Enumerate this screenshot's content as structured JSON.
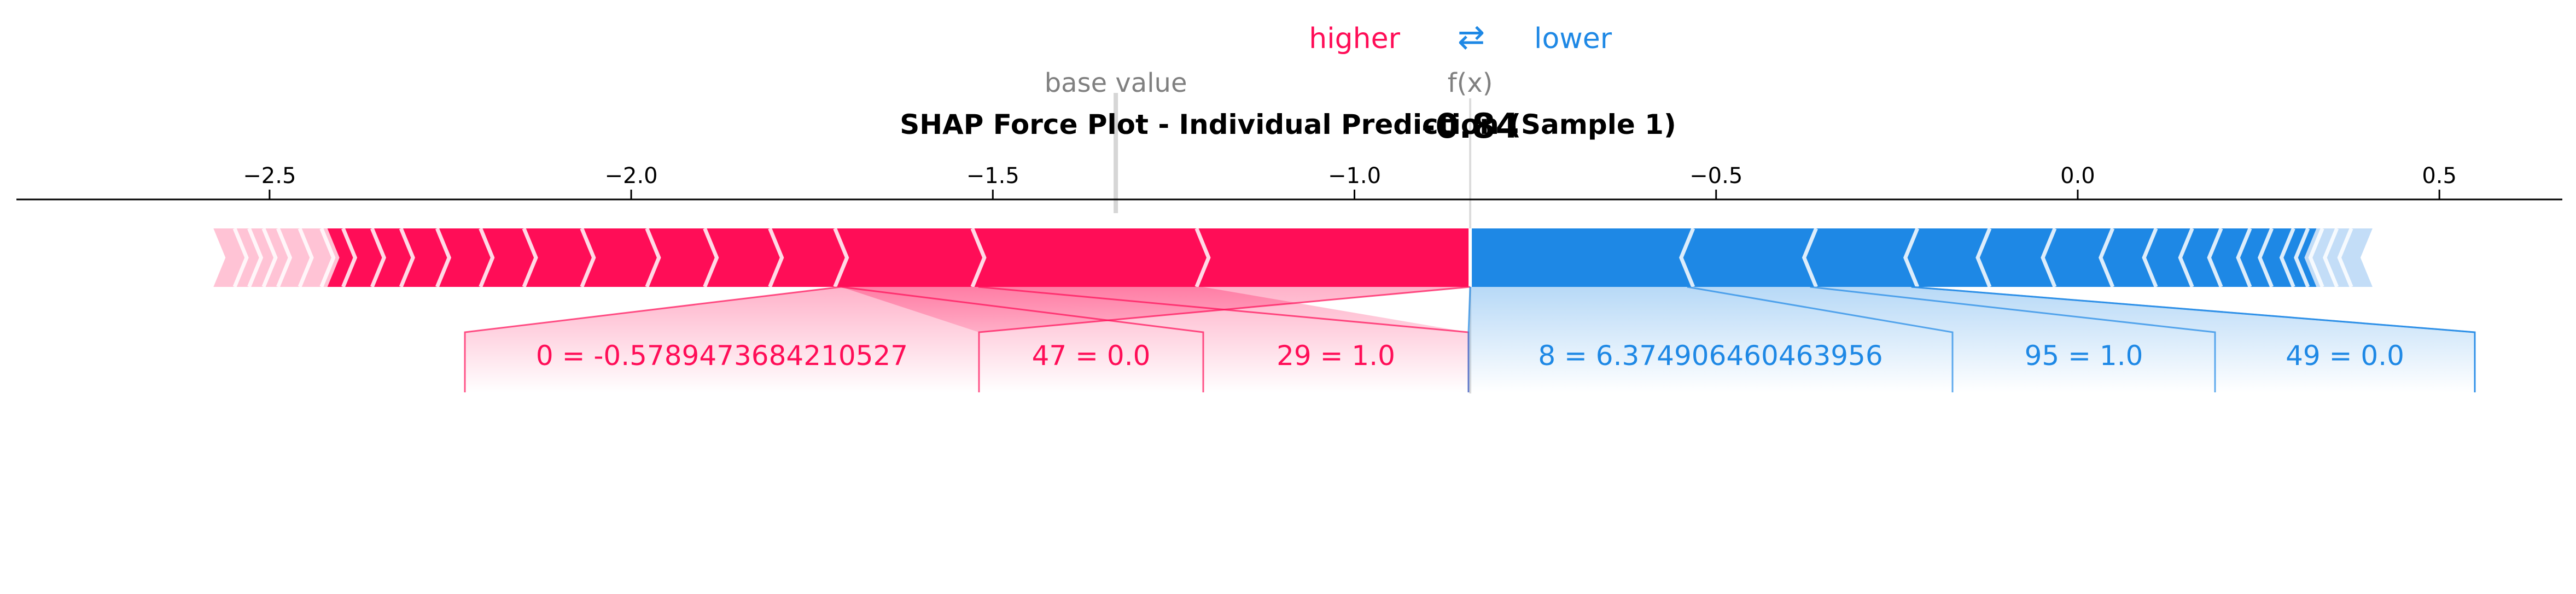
{
  "chart_data": {
    "type": "force",
    "title": "SHAP Force Plot - Individual Prediction (Sample 1)",
    "legend": {
      "higher_label": "higher",
      "lower_label": "lower",
      "arrows": "⇄",
      "higher_color": "#ff0d57",
      "lower_color": "#1e88e5"
    },
    "base_value_label": "base value",
    "base_value": -1.33,
    "fx_label": "f(x)",
    "fx_value": -0.84,
    "fx_value_text": "-0.84",
    "x_ticks": [
      -2.5,
      -2.0,
      -1.5,
      -1.0,
      -0.5,
      0.0,
      0.5
    ],
    "x_tick_labels": [
      "−2.5",
      "−2.0",
      "−1.5",
      "−1.0",
      "−0.5",
      "0.0",
      "0.5"
    ],
    "x_range": [
      -2.85,
      0.67
    ],
    "push_higher": {
      "start": -2.57,
      "end": -0.84,
      "labeled_features": [
        {
          "label": "0 = -0.5789473684210527",
          "from": -1.71,
          "to": -0.84
        },
        {
          "label": "47 = 0.0",
          "from": -1.52,
          "to": -1.71
        },
        {
          "label": "29 = 1.0",
          "from": -1.21,
          "to": -1.52
        }
      ],
      "segment_boundaries": [
        -1.71,
        -1.52,
        -1.21,
        -1.8,
        -1.89,
        -1.97,
        -2.06,
        -2.14,
        -2.2,
        -2.26,
        -2.31,
        -2.35,
        -2.39,
        -2.42,
        -2.45,
        -2.48,
        -2.5,
        -2.52,
        -2.54
      ]
    },
    "push_lower": {
      "start": -0.84,
      "end": 0.4,
      "labeled_features": [
        {
          "label": "8 = 6.374906460463956",
          "from": -0.84,
          "to": -0.54
        },
        {
          "label": "95 = 1.0",
          "from": -0.54,
          "to": -0.37
        },
        {
          "label": "49 = 0.0",
          "from": -0.37,
          "to": -0.23
        }
      ],
      "segment_boundaries": [
        -0.54,
        -0.37,
        -0.23,
        -0.13,
        -0.04,
        0.04,
        0.1,
        0.15,
        0.19,
        0.23,
        0.26,
        0.29,
        0.31,
        0.33,
        0.35,
        0.37
      ]
    }
  }
}
